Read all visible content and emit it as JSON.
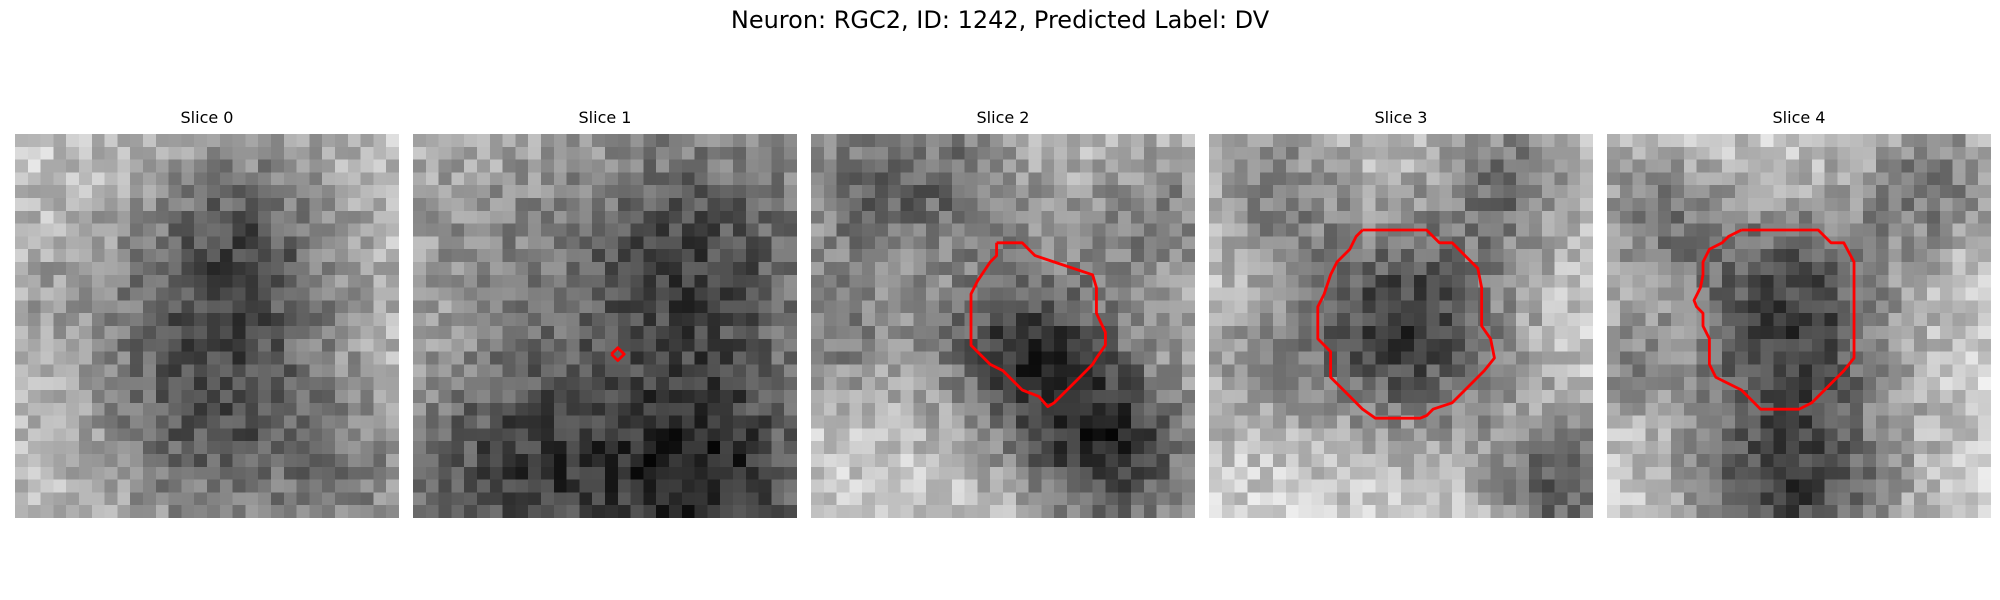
{
  "figure": {
    "title": "Neuron: RGC2, ID: 1242, Predicted Label: DV"
  },
  "colors": {
    "contour": "#ff0000",
    "background": "#ffffff"
  },
  "panels": [
    {
      "title": "Slice 0",
      "grid": 30,
      "seed": 11,
      "base": 0.78,
      "blobs": [
        [
          17,
          8,
          6,
          -0.42
        ],
        [
          15,
          21,
          7,
          -0.45
        ],
        [
          3,
          12,
          4,
          -0.12
        ],
        [
          27,
          27,
          5,
          -0.2
        ]
      ],
      "contour": []
    },
    {
      "title": "Slice 1",
      "grid": 30,
      "seed": 23,
      "base": 0.72,
      "blobs": [
        [
          21,
          10,
          8,
          -0.45
        ],
        [
          8,
          26,
          7,
          -0.45
        ],
        [
          23,
          27,
          6,
          -0.5
        ],
        [
          4,
          7,
          4,
          -0.12
        ]
      ],
      "contour": [
        [
          15.5,
          17.2
        ],
        [
          16.0,
          17.7
        ],
        [
          16.5,
          17.2
        ],
        [
          16.0,
          16.7
        ],
        [
          15.5,
          17.2
        ]
      ]
    },
    {
      "title": "Slice 2",
      "grid": 30,
      "seed": 37,
      "base": 0.8,
      "blobs": [
        [
          4,
          4,
          5,
          -0.35
        ],
        [
          16,
          16,
          5,
          -0.55
        ],
        [
          23,
          24,
          5,
          -0.6
        ],
        [
          12,
          3,
          4,
          -0.25
        ],
        [
          1,
          15,
          4,
          -0.3
        ],
        [
          27,
          6,
          5,
          -0.3
        ]
      ],
      "contour": [
        [
          14.5,
          8.5
        ],
        [
          16.5,
          8.5
        ],
        [
          17.0,
          9.0
        ],
        [
          17.5,
          9.5
        ],
        [
          19.0,
          10.0
        ],
        [
          22.0,
          11.0
        ],
        [
          22.3,
          12.0
        ],
        [
          22.3,
          14.0
        ],
        [
          23.0,
          15.5
        ],
        [
          23.0,
          16.5
        ],
        [
          22.3,
          17.5
        ],
        [
          22.0,
          18.0
        ],
        [
          21.0,
          19.0
        ],
        [
          20.0,
          20.0
        ],
        [
          19.5,
          20.5
        ],
        [
          19.0,
          21.0
        ],
        [
          18.5,
          21.3
        ],
        [
          17.8,
          20.5
        ],
        [
          16.5,
          20.0
        ],
        [
          16.0,
          19.5
        ],
        [
          15.5,
          19.0
        ],
        [
          15.0,
          18.5
        ],
        [
          14.0,
          18.0
        ],
        [
          13.0,
          17.0
        ],
        [
          12.5,
          16.5
        ],
        [
          12.5,
          12.5
        ],
        [
          13.0,
          11.5
        ],
        [
          14.0,
          10.0
        ],
        [
          14.5,
          9.5
        ],
        [
          14.5,
          8.5
        ]
      ]
    },
    {
      "title": "Slice 3",
      "grid": 30,
      "seed": 53,
      "base": 0.82,
      "blobs": [
        [
          15,
          14.5,
          6,
          -0.6
        ],
        [
          5,
          4,
          4,
          -0.3
        ],
        [
          23,
          3,
          4,
          -0.35
        ],
        [
          27,
          27,
          4,
          -0.45
        ],
        [
          3,
          18,
          4,
          -0.2
        ]
      ],
      "contour": [
        [
          12.0,
          7.5
        ],
        [
          17.0,
          7.5
        ],
        [
          17.5,
          8.0
        ],
        [
          18.0,
          8.5
        ],
        [
          19.0,
          8.5
        ],
        [
          20.0,
          9.5
        ],
        [
          21.0,
          10.5
        ],
        [
          21.3,
          12.0
        ],
        [
          21.3,
          15.0
        ],
        [
          22.0,
          16.0
        ],
        [
          22.3,
          17.5
        ],
        [
          21.5,
          18.5
        ],
        [
          20.0,
          20.0
        ],
        [
          19.0,
          21.0
        ],
        [
          17.5,
          21.5
        ],
        [
          17.0,
          22.0
        ],
        [
          16.5,
          22.2
        ],
        [
          13.0,
          22.2
        ],
        [
          12.0,
          21.5
        ],
        [
          11.0,
          20.5
        ],
        [
          10.0,
          19.5
        ],
        [
          9.5,
          19.0
        ],
        [
          9.5,
          17.0
        ],
        [
          8.5,
          16.0
        ],
        [
          8.5,
          13.5
        ],
        [
          9.0,
          12.5
        ],
        [
          9.5,
          11.0
        ],
        [
          10.0,
          10.0
        ],
        [
          11.0,
          9.0
        ],
        [
          11.5,
          8.0
        ],
        [
          12.0,
          7.5
        ]
      ]
    },
    {
      "title": "Slice 4",
      "grid": 30,
      "seed": 71,
      "base": 0.83,
      "blobs": [
        [
          14,
          13,
          6,
          -0.55
        ],
        [
          14,
          27,
          6,
          -0.55
        ],
        [
          3,
          6,
          4,
          -0.3
        ],
        [
          25,
          3,
          4,
          -0.35
        ],
        [
          1,
          18,
          3,
          -0.25
        ]
      ],
      "contour": [
        [
          10.5,
          7.5
        ],
        [
          16.5,
          7.5
        ],
        [
          17.0,
          8.0
        ],
        [
          17.5,
          8.5
        ],
        [
          18.5,
          8.5
        ],
        [
          19.3,
          10.0
        ],
        [
          19.3,
          17.5
        ],
        [
          18.5,
          18.5
        ],
        [
          17.0,
          20.0
        ],
        [
          16.0,
          21.0
        ],
        [
          15.0,
          21.5
        ],
        [
          12.0,
          21.5
        ],
        [
          11.5,
          21.0
        ],
        [
          10.5,
          20.0
        ],
        [
          9.5,
          19.5
        ],
        [
          8.5,
          19.0
        ],
        [
          8.0,
          18.0
        ],
        [
          8.0,
          16.0
        ],
        [
          7.5,
          15.0
        ],
        [
          7.5,
          14.0
        ],
        [
          7.0,
          13.5
        ],
        [
          6.8,
          13.0
        ],
        [
          7.3,
          12.0
        ],
        [
          7.5,
          11.0
        ],
        [
          7.5,
          10.0
        ],
        [
          8.0,
          9.0
        ],
        [
          9.0,
          8.5
        ],
        [
          9.5,
          8.0
        ],
        [
          10.5,
          7.5
        ]
      ]
    }
  ]
}
